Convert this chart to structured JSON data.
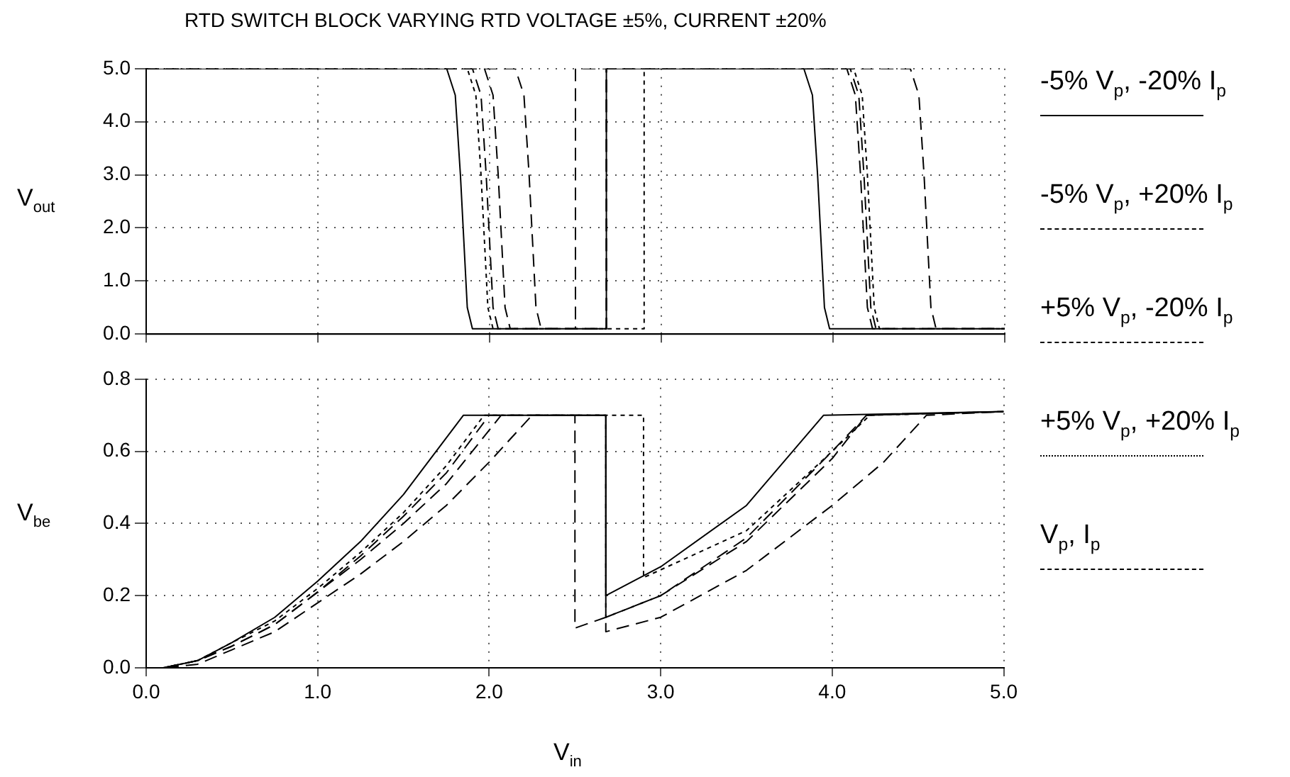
{
  "chart_data": [
    {
      "type": "line",
      "title": "RTD SWITCH BLOCK   VARYING RTD VOLTAGE ±5%, CURRENT ±20%",
      "ylabel": "V$_{out}$",
      "legend": "right",
      "grid": true,
      "tick_labels": "y",
      "marker": "none",
      "xlim": [
        0,
        5
      ],
      "xticks": [
        {
          "value": 0,
          "label": null
        },
        {
          "value": 1,
          "label": null
        },
        {
          "value": 2,
          "label": null
        },
        {
          "value": 3,
          "label": null
        },
        {
          "value": 4,
          "label": null
        },
        {
          "value": 5,
          "label": null
        }
      ],
      "ylim": [
        0,
        5
      ],
      "yticks": [
        {
          "value": 0,
          "label": "0.0"
        },
        {
          "value": 1,
          "label": "1.0"
        },
        {
          "value": 2,
          "label": "2.0"
        },
        {
          "value": 3,
          "label": "3.0"
        },
        {
          "value": 4,
          "label": "4.0"
        },
        {
          "value": 5,
          "label": "5.0"
        }
      ],
      "series": [
        {
          "name": "-5% V$_{p}$, -20% I$_{p}$",
          "color": "#000000",
          "line_style": "solid",
          "x": [
            0,
            1.75,
            1.8,
            1.83,
            1.87,
            1.9,
            2.68,
            2.68,
            3.83,
            3.88,
            3.91,
            3.95,
            3.98,
            5
          ],
          "values": [
            5,
            5,
            4.5,
            3,
            0.5,
            0.1,
            0.1,
            5,
            5,
            4.5,
            3,
            0.5,
            0.1,
            0.1
          ]
        },
        {
          "name": "-5% V$_{p}$, +20% I$_{p}$",
          "color": "#000000",
          "line_style": "dashed",
          "x": [
            0,
            1.97,
            2.02,
            2.05,
            2.09,
            2.12,
            2.5,
            2.5,
            4.08,
            4.13,
            4.16,
            4.2,
            4.23,
            5
          ],
          "values": [
            5,
            5,
            4.5,
            3,
            0.5,
            0.1,
            0.1,
            5,
            5,
            4.5,
            3,
            0.5,
            0.1,
            0.1
          ]
        },
        {
          "name": "+5% V$_{p}$, -20% I$_{p}$",
          "color": "#000000",
          "line_style": "dashed",
          "x": [
            0,
            2.15,
            2.2,
            2.23,
            2.27,
            2.3,
            2.68,
            2.68,
            4.45,
            4.5,
            4.53,
            4.57,
            4.6,
            5
          ],
          "values": [
            5,
            5,
            4.5,
            3,
            0.5,
            0.1,
            0.1,
            5,
            5,
            4.5,
            3,
            0.5,
            0.1,
            0.1
          ]
        },
        {
          "name": "+5% V$_{p}$, +20% I$_{p}$",
          "color": "#000000",
          "line_style": "dotted",
          "x": [
            0,
            1.87,
            1.92,
            1.95,
            1.99,
            2.02,
            2.9,
            2.9,
            4.12,
            4.17,
            4.2,
            4.24,
            4.27,
            5
          ],
          "values": [
            5,
            5,
            4.5,
            3,
            0.5,
            0.1,
            0.1,
            5,
            5,
            4.5,
            3,
            0.5,
            0.1,
            0.1
          ]
        },
        {
          "name": "V$_{p}$, I$_{p}$",
          "color": "#000000",
          "line_style": "dashed",
          "x": [
            0,
            1.9,
            1.95,
            1.98,
            2.02,
            2.05,
            2.68,
            2.68,
            4.1,
            4.15,
            4.18,
            4.22,
            4.25,
            5
          ],
          "values": [
            5,
            5,
            4.5,
            3,
            0.5,
            0.1,
            0.1,
            5,
            5,
            4.5,
            3,
            0.5,
            0.1,
            0.1
          ]
        }
      ]
    },
    {
      "type": "line",
      "xlabel": "V$_{in}$",
      "ylabel": "V$_{be}$",
      "grid": true,
      "marker": "none",
      "xlim": [
        0,
        5
      ],
      "xticks": [
        {
          "value": 0,
          "label": "0.0"
        },
        {
          "value": 1,
          "label": "1.0"
        },
        {
          "value": 2,
          "label": "2.0"
        },
        {
          "value": 3,
          "label": "3.0"
        },
        {
          "value": 4,
          "label": "4.0"
        },
        {
          "value": 5,
          "label": "5.0"
        }
      ],
      "ylim": [
        0,
        0.8
      ],
      "yticks": [
        {
          "value": 0,
          "label": "0.0"
        },
        {
          "value": 0.2,
          "label": "0.2"
        },
        {
          "value": 0.4,
          "label": "0.4"
        },
        {
          "value": 0.6,
          "label": "0.6"
        },
        {
          "value": 0.8,
          "label": "0.8"
        }
      ],
      "series": [
        {
          "color": "#000000",
          "line_style": "solid",
          "x": [
            0,
            0.1,
            0.3,
            0.5,
            0.75,
            1.0,
            1.25,
            1.5,
            1.85,
            2.68,
            2.68,
            3.0,
            3.5,
            3.95,
            5
          ],
          "values": [
            0,
            0,
            0.02,
            0.07,
            0.14,
            0.24,
            0.35,
            0.48,
            0.7,
            0.7,
            0.2,
            0.28,
            0.45,
            0.7,
            0.71
          ]
        },
        {
          "color": "#000000",
          "line_style": "dashed",
          "x": [
            0,
            0.1,
            0.3,
            0.5,
            0.75,
            1.0,
            1.25,
            1.5,
            1.75,
            2.07,
            2.5,
            2.5,
            2.68,
            3.0,
            3.5,
            4.0,
            4.2,
            5
          ],
          "values": [
            0,
            0,
            0.02,
            0.06,
            0.12,
            0.21,
            0.3,
            0.4,
            0.51,
            0.7,
            0.7,
            0.11,
            0.14,
            0.2,
            0.36,
            0.6,
            0.7,
            0.71
          ]
        },
        {
          "color": "#000000",
          "line_style": "dashed",
          "x": [
            0,
            0.1,
            0.3,
            0.5,
            0.75,
            1.0,
            1.25,
            1.5,
            1.75,
            2.0,
            2.25,
            2.68,
            2.68,
            3.0,
            3.5,
            4.0,
            4.3,
            4.55,
            5
          ],
          "values": [
            0,
            0,
            0.01,
            0.05,
            0.1,
            0.18,
            0.26,
            0.35,
            0.45,
            0.57,
            0.7,
            0.7,
            0.1,
            0.14,
            0.27,
            0.45,
            0.57,
            0.7,
            0.71
          ]
        },
        {
          "color": "#000000",
          "line_style": "dotted",
          "x": [
            0,
            0.1,
            0.3,
            0.5,
            0.75,
            1.0,
            1.25,
            1.5,
            1.75,
            1.97,
            2.9,
            2.9,
            3.5,
            4.0,
            4.22,
            5
          ],
          "values": [
            0,
            0,
            0.02,
            0.07,
            0.13,
            0.22,
            0.32,
            0.43,
            0.56,
            0.7,
            0.7,
            0.25,
            0.38,
            0.6,
            0.7,
            0.71
          ]
        },
        {
          "color": "#000000",
          "line_style": "dashed",
          "x": [
            0,
            0.1,
            0.3,
            0.5,
            0.75,
            1.0,
            1.25,
            1.5,
            1.75,
            2.0,
            2.68,
            2.68,
            3.0,
            3.5,
            4.0,
            4.2,
            5
          ],
          "values": [
            0,
            0,
            0.02,
            0.06,
            0.12,
            0.21,
            0.31,
            0.42,
            0.54,
            0.7,
            0.7,
            0.14,
            0.2,
            0.35,
            0.58,
            0.7,
            0.71
          ]
        }
      ]
    }
  ]
}
